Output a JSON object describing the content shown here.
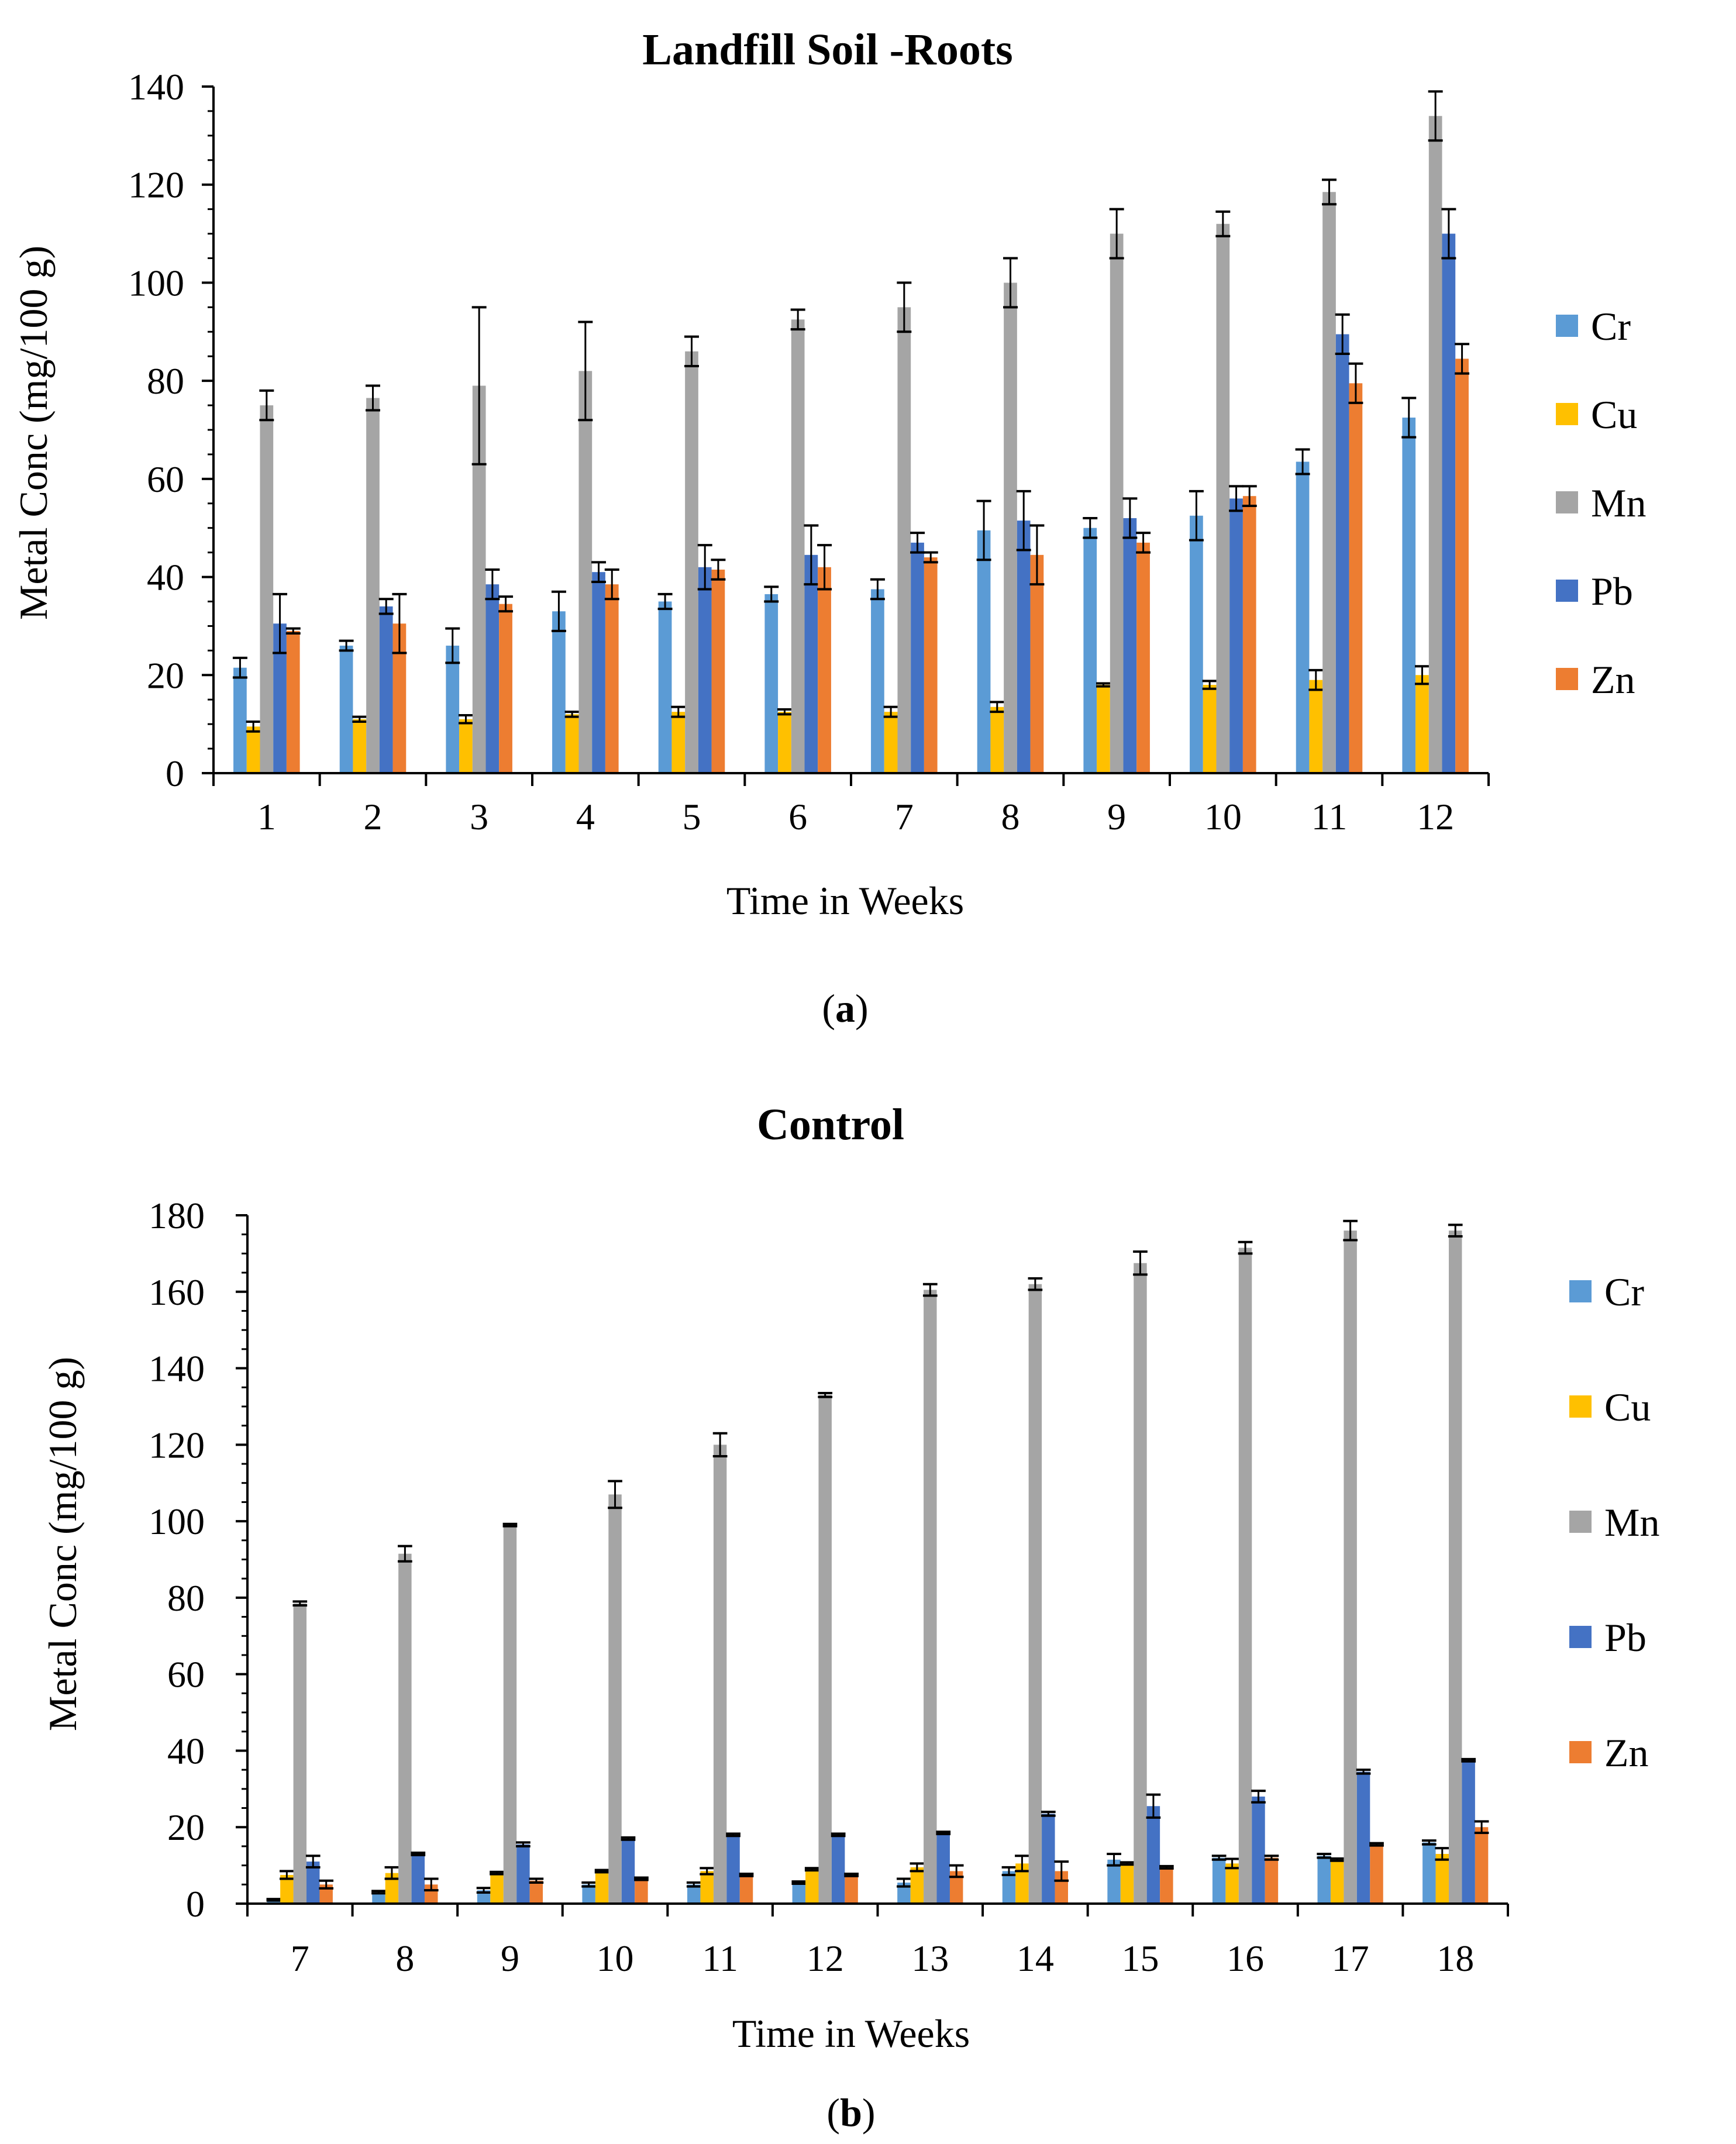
{
  "colors": {
    "Cr": "#5b9bd5",
    "Cu": "#ffc000",
    "Mn": "#a5a5a5",
    "Pb": "#4472c4",
    "Zn": "#ed7d31"
  },
  "chart_data": [
    {
      "id": "a",
      "type": "bar",
      "title": "Landfill Soil -Roots",
      "caption_letter": "a",
      "xlabel": "Time in Weeks",
      "ylabel": "Metal Conc (mg/100 g)",
      "ylim": [
        0,
        140
      ],
      "yticks": [
        0,
        20,
        40,
        60,
        80,
        100,
        120,
        140
      ],
      "categories": [
        "1",
        "2",
        "3",
        "4",
        "5",
        "6",
        "7",
        "8",
        "9",
        "10",
        "11",
        "12"
      ],
      "legend": [
        "Cr",
        "Cu",
        "Mn",
        "Pb",
        "Zn"
      ],
      "series": [
        {
          "name": "Cr",
          "values": [
            21.5,
            26,
            26,
            33,
            35,
            36.5,
            37.5,
            49.5,
            50,
            52.5,
            63.5,
            72.5
          ],
          "errors": [
            2,
            1,
            3.5,
            4,
            1.5,
            1.5,
            2,
            6,
            2,
            5,
            2.5,
            4
          ]
        },
        {
          "name": "Cu",
          "values": [
            9.5,
            11,
            11,
            12,
            12.5,
            12.5,
            12.5,
            13.5,
            18,
            18,
            19,
            20
          ],
          "errors": [
            1,
            0.5,
            0.8,
            0.5,
            1,
            0.5,
            1,
            1,
            0.3,
            0.8,
            2,
            1.8
          ]
        },
        {
          "name": "Mn",
          "values": [
            75,
            76.5,
            79,
            82,
            86,
            92.5,
            95,
            100,
            110,
            112,
            118.5,
            134
          ],
          "errors": [
            3,
            2.5,
            16,
            10,
            3,
            2,
            5,
            5,
            5,
            2.5,
            2.5,
            5
          ]
        },
        {
          "name": "Pb",
          "values": [
            30.5,
            34,
            38.5,
            41,
            42,
            44.5,
            47,
            51.5,
            52,
            56,
            89.5,
            110
          ],
          "errors": [
            6,
            1.5,
            3,
            2,
            4.5,
            6,
            2,
            6,
            4,
            2.5,
            4,
            5
          ]
        },
        {
          "name": "Zn",
          "values": [
            29,
            30.5,
            34.5,
            38.5,
            41.5,
            42,
            44,
            44.5,
            47,
            56.5,
            79.5,
            84.5
          ],
          "errors": [
            0.5,
            6,
            1.5,
            3,
            2,
            4.5,
            1,
            6,
            2,
            2,
            4,
            3
          ]
        }
      ]
    },
    {
      "id": "b",
      "type": "bar",
      "title": "Control",
      "caption_letter": "b",
      "xlabel": "Time in Weeks",
      "ylabel": "Metal Conc (mg/100 g)",
      "ylim": [
        0,
        180
      ],
      "yticks": [
        0,
        20,
        40,
        60,
        80,
        100,
        120,
        140,
        160,
        180
      ],
      "categories": [
        "7",
        "8",
        "9",
        "10",
        "11",
        "12",
        "13",
        "14",
        "15",
        "16",
        "17",
        "18"
      ],
      "legend": [
        "Cr",
        "Cu",
        "Mn",
        "Pb",
        "Zn"
      ],
      "series": [
        {
          "name": "Cr",
          "values": [
            1,
            3,
            3.5,
            5,
            5,
            5.5,
            5.5,
            8.5,
            11.5,
            12,
            12.5,
            16
          ],
          "errors": [
            0.2,
            0.3,
            0.6,
            0.5,
            0.5,
            0.3,
            1,
            1,
            1.5,
            0.5,
            0.5,
            0.5
          ]
        },
        {
          "name": "Cu",
          "values": [
            7.5,
            8,
            8,
            8.5,
            8.5,
            9,
            9.5,
            10.5,
            10.5,
            10.5,
            11.5,
            13
          ],
          "errors": [
            1,
            1.5,
            0.3,
            0.3,
            0.8,
            0.3,
            1,
            2,
            0.3,
            1.2,
            0.3,
            1.5
          ]
        },
        {
          "name": "Mn",
          "values": [
            78.5,
            91.5,
            99,
            107,
            120,
            133,
            160.5,
            162,
            167.5,
            171.5,
            176,
            176
          ],
          "errors": [
            0.5,
            2,
            0.3,
            3.5,
            3,
            0.5,
            1.5,
            1.5,
            3,
            1.5,
            2.5,
            1.5
          ]
        },
        {
          "name": "Pb",
          "values": [
            11,
            13,
            15.5,
            17,
            18,
            18,
            18.5,
            23.5,
            25.5,
            28,
            34.5,
            37.5
          ],
          "errors": [
            1.5,
            0.3,
            0.5,
            0.3,
            0.3,
            0.3,
            0.3,
            0.5,
            3,
            1.5,
            0.5,
            0.3
          ]
        },
        {
          "name": "Zn",
          "values": [
            5,
            5,
            6,
            6.5,
            7.5,
            7.5,
            8.5,
            8.5,
            9.5,
            12,
            15.5,
            20
          ],
          "errors": [
            1,
            1.5,
            0.5,
            0.3,
            0.3,
            0.3,
            1.5,
            2.5,
            0.3,
            0.5,
            0.3,
            1.5
          ]
        }
      ]
    }
  ]
}
